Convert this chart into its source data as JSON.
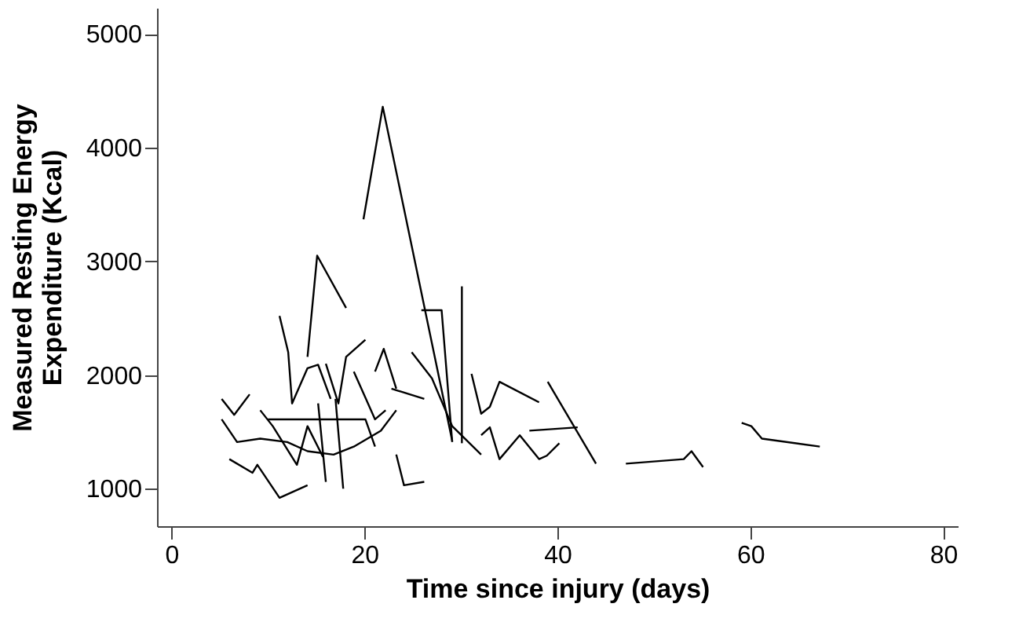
{
  "chart_data": {
    "type": "line",
    "xlabel": "Time since injury (days)",
    "ylabel": "Measured Resting Energy\nExpenditure (Kcal)",
    "xlim": [
      -1.5,
      81.5
    ],
    "ylim": [
      670,
      5230
    ],
    "xticks": [
      0,
      20,
      40,
      60,
      80
    ],
    "yticks": [
      1000,
      2000,
      3000,
      4000,
      5000
    ],
    "grid": false,
    "line_style": "solid",
    "series": [
      {
        "color": "#000000",
        "x": [
          19.9,
          21.9,
          29.1
        ],
        "values": [
          3370,
          4360,
          1420
        ]
      },
      {
        "color": "#000000",
        "x": [
          14.1,
          15.1,
          18.1
        ],
        "values": [
          2160,
          3050,
          2590
        ]
      },
      {
        "color": "#000000",
        "x": [
          30.1,
          30.1
        ],
        "values": [
          2780,
          1400
        ]
      },
      {
        "color": "#000000",
        "x": [
          25.9,
          28.0,
          29.1
        ],
        "values": [
          2570,
          2570,
          1410
        ]
      },
      {
        "color": "#000000",
        "x": [
          21.1,
          22.0,
          23.3
        ],
        "values": [
          2030,
          2230,
          1880
        ]
      },
      {
        "color": "#000000",
        "x": [
          31.1,
          32.1,
          33.0,
          34.0,
          38.1
        ],
        "values": [
          2010,
          1660,
          1720,
          1940,
          1760
        ]
      },
      {
        "color": "#000000",
        "x": [
          32.1,
          33.0,
          34.0,
          36.1,
          38.1,
          38.9,
          40.2
        ],
        "values": [
          1470,
          1540,
          1260,
          1470,
          1260,
          1290,
          1400
        ]
      },
      {
        "color": "#000000",
        "x": [
          37.1,
          42.1
        ],
        "values": [
          1510,
          1540
        ]
      },
      {
        "color": "#000000",
        "x": [
          39.0,
          44.0
        ],
        "values": [
          1940,
          1220
        ]
      },
      {
        "color": "#000000",
        "x": [
          47.1,
          53.1,
          53.9,
          55.1
        ],
        "values": [
          1220,
          1260,
          1330,
          1190
        ]
      },
      {
        "color": "#000000",
        "x": [
          59.1,
          60.1,
          61.2,
          67.2
        ],
        "values": [
          1580,
          1550,
          1440,
          1370
        ]
      },
      {
        "color": "#000000",
        "x": [
          24.9,
          27.0,
          29.1,
          32.1
        ],
        "values": [
          2200,
          1970,
          1550,
          1300
        ]
      },
      {
        "color": "#000000",
        "x": [
          5.2,
          6.5,
          8.1
        ],
        "values": [
          1790,
          1650,
          1830
        ]
      },
      {
        "color": "#000000",
        "x": [
          6.0,
          8.4,
          8.9,
          11.2,
          14.1
        ],
        "values": [
          1260,
          1140,
          1210,
          920,
          1030
        ]
      },
      {
        "color": "#000000",
        "x": [
          11.2,
          12.1,
          12.5,
          14.1,
          15.2,
          16.5
        ],
        "values": [
          2520,
          2200,
          1750,
          2060,
          2090,
          1790
        ]
      },
      {
        "color": "#000000",
        "x": [
          9.2,
          10.5,
          13.0,
          14.1,
          15.7
        ],
        "values": [
          1690,
          1550,
          1210,
          1550,
          1280
        ]
      },
      {
        "color": "#000000",
        "x": [
          10.0,
          20.1,
          21.1
        ],
        "values": [
          1610,
          1610,
          1370
        ]
      },
      {
        "color": "#000000",
        "x": [
          5.2,
          6.8,
          9.2,
          12.0,
          14.1,
          16.8,
          18.9,
          21.7,
          23.3
        ],
        "values": [
          1610,
          1410,
          1440,
          1410,
          1330,
          1300,
          1370,
          1510,
          1690
        ]
      },
      {
        "color": "#000000",
        "x": [
          16.0,
          17.3,
          18.1,
          20.1
        ],
        "values": [
          2100,
          1750,
          2160,
          2310
        ]
      },
      {
        "color": "#000000",
        "x": [
          17.0,
          17.8
        ],
        "values": [
          1790,
          1000
        ]
      },
      {
        "color": "#000000",
        "x": [
          15.2,
          16.0
        ],
        "values": [
          1750,
          1060
        ]
      },
      {
        "color": "#000000",
        "x": [
          18.9,
          21.1,
          22.2
        ],
        "values": [
          2030,
          1610,
          1690
        ]
      },
      {
        "color": "#000000",
        "x": [
          23.3,
          24.1,
          26.2
        ],
        "values": [
          1300,
          1030,
          1060
        ]
      },
      {
        "color": "#000000",
        "x": [
          22.8,
          26.2
        ],
        "values": [
          1880,
          1790
        ]
      }
    ]
  }
}
